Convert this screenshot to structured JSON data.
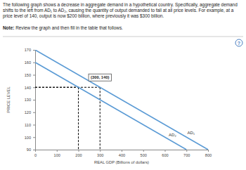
{
  "intro": "The following graph shows a decrease in aggregate demand in a hypothetical country. Specifically, aggregate demand shifts to the left from AD₁ to AD₂, causing the quantity of output demanded to fall at all price levels. For example, at a price level of 140, output is now $200 billion, where previously it was $300 billion.",
  "note": {
    "label": "Note:",
    "text": "Review the graph and then fill in the table that follows."
  },
  "help_icon": "?",
  "chart_data": {
    "type": "line",
    "x_label": "REAL GDP (Billions of dollars)",
    "y_label": "PRICE LEVEL",
    "xlim": [
      0,
      800
    ],
    "xticks": [
      0,
      100,
      200,
      300,
      400,
      500,
      600,
      700,
      800
    ],
    "ylim": [
      90,
      170
    ],
    "yticks": [
      90,
      100,
      110,
      120,
      130,
      140,
      150,
      160,
      170
    ],
    "grid": false,
    "series": [
      {
        "name": "AD₁",
        "color": "#5b9bd5",
        "x": [
          0,
          800
        ],
        "values": [
          170,
          90
        ]
      },
      {
        "name": "AD₂",
        "color": "#5b9bd5",
        "x": [
          0,
          700
        ],
        "values": [
          160,
          90
        ]
      }
    ],
    "annotations": [
      {
        "x": 300,
        "y": 140,
        "label": "(300, 140)"
      },
      {
        "x": 200,
        "y": 140
      }
    ]
  }
}
